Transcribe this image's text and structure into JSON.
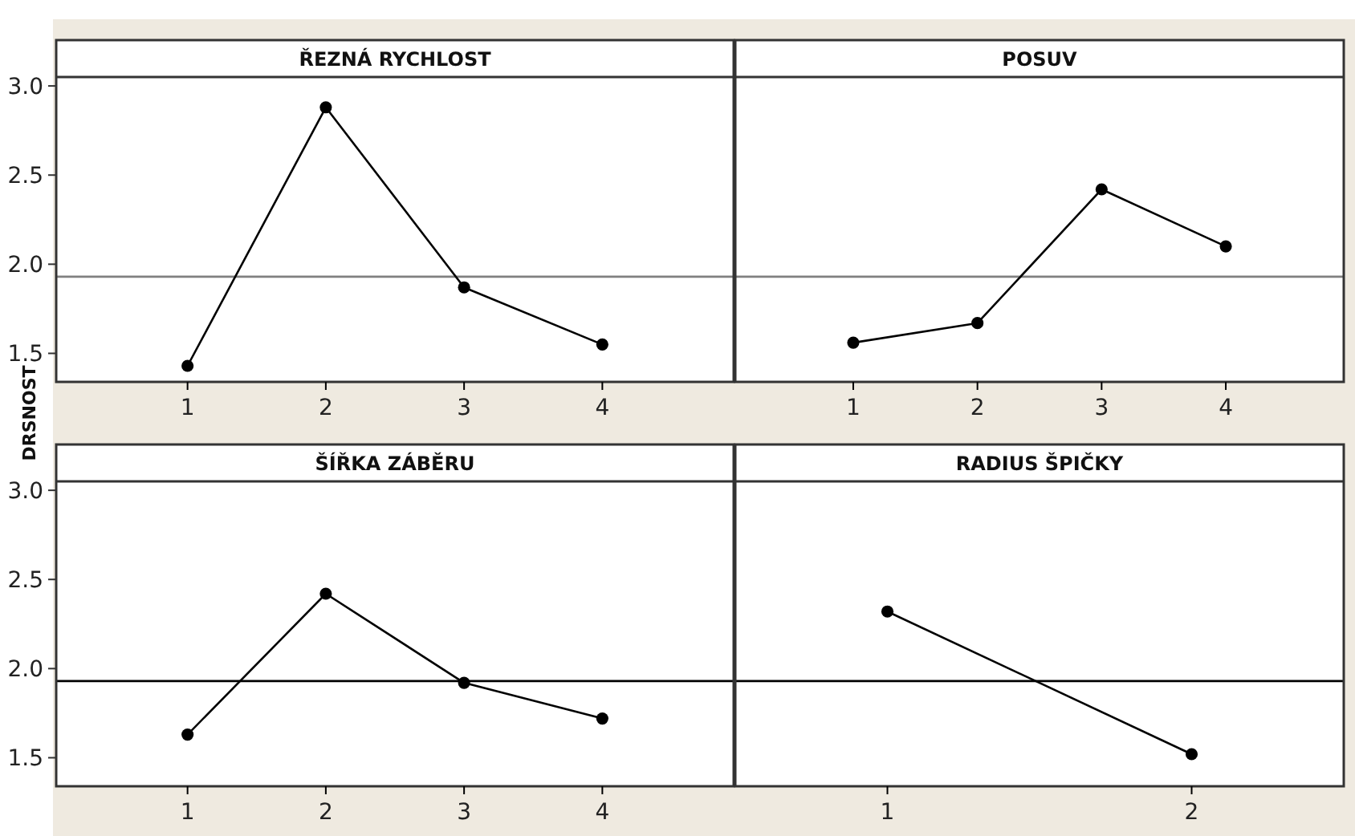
{
  "chart_data": [
    {
      "type": "line",
      "title": "ŘEZNÁ RYCHLOST",
      "ylabel": "DRSNOST",
      "categories": [
        "1",
        "2",
        "3",
        "4"
      ],
      "values": [
        1.43,
        2.88,
        1.87,
        1.55
      ],
      "color": "#000000",
      "marker": "circle",
      "ylim": [
        1.34,
        3.05
      ],
      "yticks": [
        {
          "value": 1.5,
          "label": "1.5"
        },
        {
          "value": 2,
          "label": "2.0"
        },
        {
          "value": 2.5,
          "label": "2.5"
        },
        {
          "value": 3,
          "label": "3.0"
        }
      ],
      "ref_lines": [
        {
          "axis": "y",
          "value": 1.93,
          "color": "#808080"
        }
      ]
    },
    {
      "type": "line",
      "title": "POSUV",
      "categories": [
        "1",
        "2",
        "3",
        "4"
      ],
      "values": [
        1.56,
        1.67,
        2.42,
        2.1
      ],
      "color": "#000000",
      "marker": "circle",
      "ylim": [
        1.34,
        3.05
      ],
      "tick_labels": "x",
      "ref_lines": [
        {
          "axis": "y",
          "value": 1.93,
          "color": "#808080"
        }
      ]
    },
    {
      "type": "line",
      "title": "ŠÍŘKA ZÁBĚRU",
      "categories": [
        "1",
        "2",
        "3",
        "4"
      ],
      "values": [
        1.63,
        2.42,
        1.92,
        1.72
      ],
      "color": "#000000",
      "marker": "circle",
      "ylim": [
        1.34,
        3.05
      ],
      "yticks": [
        {
          "value": 1.5,
          "label": "1.5"
        },
        {
          "value": 2,
          "label": "2.0"
        },
        {
          "value": 2.5,
          "label": "2.5"
        },
        {
          "value": 3,
          "label": "3.0"
        }
      ],
      "ref_lines": [
        {
          "axis": "y",
          "value": 1.93,
          "color": "#000000"
        }
      ]
    },
    {
      "type": "line",
      "title": "RADIUS ŠPIČKY",
      "categories": [
        "1",
        "2"
      ],
      "values": [
        2.32,
        1.52
      ],
      "color": "#000000",
      "marker": "circle",
      "ylim": [
        1.34,
        3.05
      ],
      "tick_labels": "x",
      "ref_lines": [
        {
          "axis": "y",
          "value": 1.93,
          "color": "#000000"
        }
      ]
    }
  ]
}
